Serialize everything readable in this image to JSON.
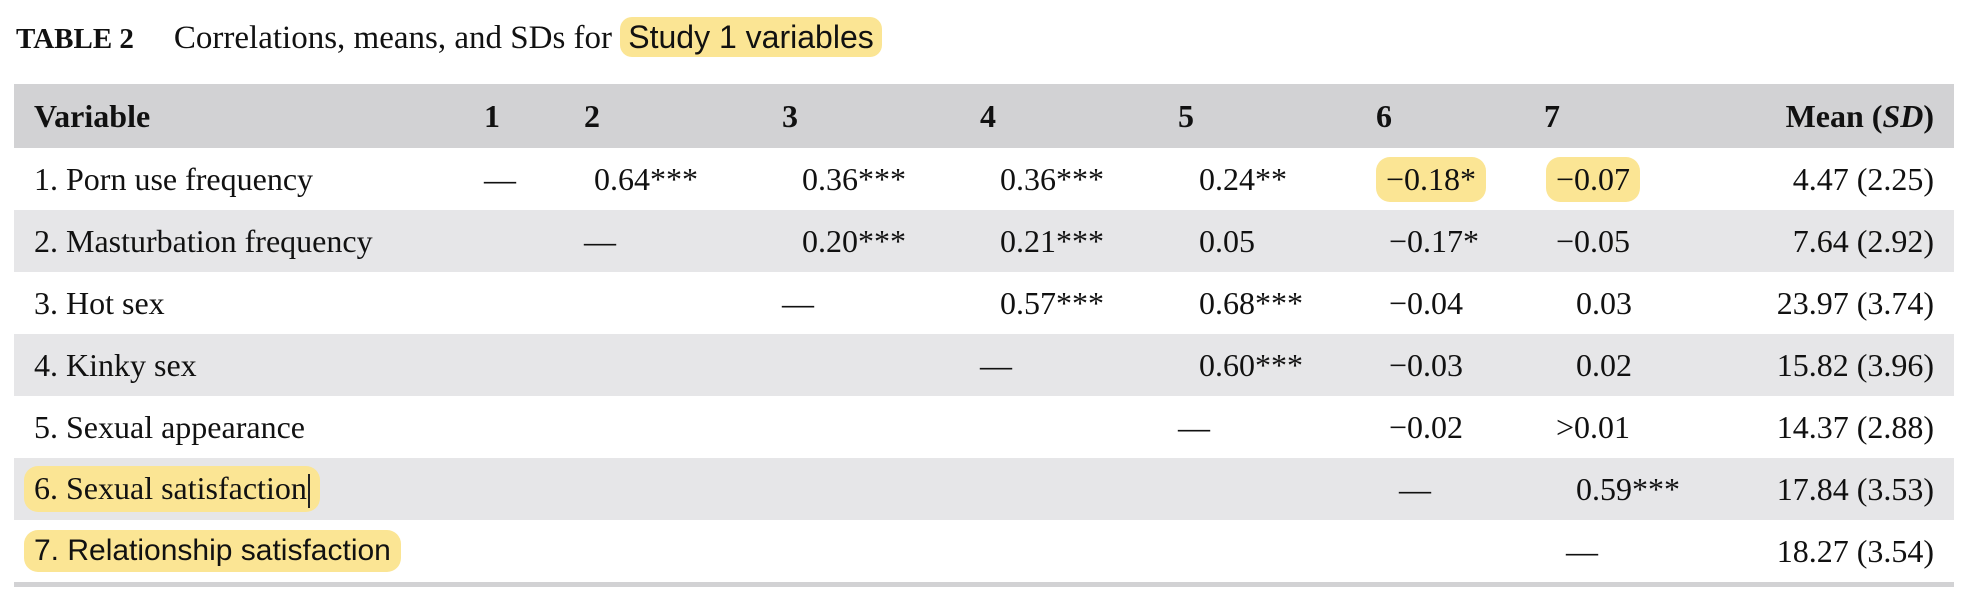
{
  "caption": {
    "label": "TABLE 2",
    "text": "Correlations, means, and SDs for",
    "highlighted": "Study 1 variables"
  },
  "header": {
    "variable": "Variable",
    "cols": [
      "1",
      "2",
      "3",
      "4",
      "5",
      "6",
      "7"
    ],
    "mean": "Mean (",
    "mean_sd": "SD",
    "mean_close": ")"
  },
  "rows": [
    {
      "variable": "1. Porn use frequency",
      "c1": "—",
      "c2": " 0.64***",
      "c3": "0.36***",
      "c4": "0.36***",
      "c5": "0.24**",
      "c6": "−0.18*",
      "c7": "−0.07",
      "mean": "4.47 (2.25)"
    },
    {
      "variable": "2. Masturbation frequency",
      "c2": "—",
      "c3": "0.20***",
      "c4": "0.21***",
      "c5": "0.05",
      "c6": "−0.17*",
      "c7": "−0.05",
      "mean": "7.64 (2.92)"
    },
    {
      "variable": "3. Hot sex",
      "c3": "—",
      "c4": "0.57***",
      "c5": "0.68***",
      "c6": "−0.04",
      "c7": "0.03",
      "mean": "23.97 (3.74)"
    },
    {
      "variable": "4. Kinky sex",
      "c4": "—",
      "c5": "0.60***",
      "c6": "−0.03",
      "c7": "0.02",
      "mean": "15.82 (3.96)"
    },
    {
      "variable": "5. Sexual appearance",
      "c5": "—",
      "c6": "−0.02",
      "c7": ">0.01",
      "mean": "14.37 (2.88)"
    },
    {
      "variable": "6. Sexual satisfaction",
      "c6": "—",
      "c7": "0.59***",
      "mean": "17.84 (3.53)"
    },
    {
      "variable": "7. Relationship satisfaction",
      "c7": "—",
      "mean": "18.27 (3.54)"
    }
  ],
  "colors": {
    "highlight": "#fbe594",
    "header_bg": "#d2d2d4",
    "stripe_bg": "#e6e6e8"
  }
}
